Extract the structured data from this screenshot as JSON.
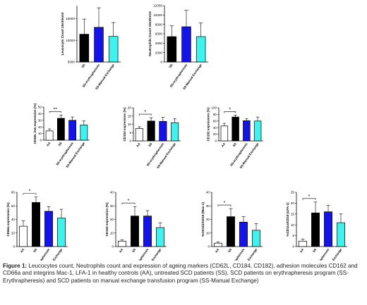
{
  "colors": {
    "AA": "#ffffff",
    "SS": "#000000",
    "SS-erythrapheresis": "#1414e8",
    "SS-Manual Exchange": "#3ff2ee"
  },
  "caption": {
    "label": "Figure 1:",
    "text": "Leucocytes count, Neutrophils count and expression of ageing markers (CD62L, CD184, CD182), adhesion molecules CD162 and CD66a and integrins Mac-1, LFA-1 in healthy controls (AA), untreated SCD patients (SS), SCD patients on erythrapheresis program (SS-Erythrapheresis) and SCD patients on manual exchange transfusion program (SS-Manual Exchange)"
  },
  "chart_data": [
    {
      "type": "bar",
      "ylabel": "Leucocyts Count 10e3/mm3",
      "categories": [
        "SS",
        "SS-erythrapheresis",
        "SS-Manual Exchange"
      ],
      "values": [
        11400,
        13000,
        10900
      ],
      "errors": [
        3500,
        4500,
        3200
      ],
      "ylim": [
        5000,
        18000
      ],
      "yticks": [
        5000,
        10000,
        15000
      ],
      "sig": []
    },
    {
      "type": "bar",
      "ylabel": "Neutrophils Count 10e3/mm3",
      "categories": [
        "SS",
        "SS-erythrapheresis",
        "SS-Manual Exchange"
      ],
      "values": [
        5400,
        7500,
        5400
      ],
      "errors": [
        2300,
        3500,
        2900
      ],
      "ylim": [
        0,
        12000
      ],
      "yticks": [
        0,
        2000,
        4000,
        6000,
        8000,
        10000,
        12000
      ],
      "sig": []
    },
    {
      "type": "bar",
      "ylabel": "CD62L low expression (%)",
      "categories": [
        "AA",
        "SS",
        "SS-erythrapheresis",
        "SS-Manual Exchange"
      ],
      "values": [
        14,
        33,
        30,
        23
      ],
      "errors": [
        3,
        5,
        5,
        6
      ],
      "ylim": [
        0,
        50
      ],
      "yticks": [
        0,
        10,
        20,
        30,
        40,
        50
      ],
      "sig": [
        {
          "from": 0,
          "to": 1,
          "label": "**"
        }
      ]
    },
    {
      "type": "bar",
      "ylabel": "CD184 expression (%)",
      "categories": [
        "AA",
        "SS",
        "SS-erythrapheresis",
        "SS-Manual Exchange"
      ],
      "values": [
        7.5,
        12,
        11.8,
        11
      ],
      "errors": [
        1,
        2,
        2.5,
        2.5
      ],
      "ylim": [
        0,
        20
      ],
      "yticks": [
        0,
        5,
        10,
        15,
        20
      ],
      "sig": [
        {
          "from": 0,
          "to": 1,
          "label": "*"
        }
      ]
    },
    {
      "type": "bar",
      "ylabel": "CD182 expression (%)",
      "categories": [
        "AA",
        "SS",
        "SS-erythrapheresis",
        "SS-Manual Exchange"
      ],
      "values": [
        45,
        72,
        61,
        60
      ],
      "errors": [
        8,
        6,
        6,
        12
      ],
      "ylim": [
        0,
        100
      ],
      "yticks": [
        0,
        20,
        40,
        60,
        80,
        100
      ],
      "sig": [
        {
          "from": 0,
          "to": 1,
          "label": "*"
        }
      ]
    },
    {
      "type": "bar",
      "ylabel": "CD66a expression (%)",
      "categories": [
        "AA",
        "SS",
        "SS-erythrapheresis",
        "SS-Manual Exchange"
      ],
      "values": [
        30,
        65,
        52,
        42
      ],
      "errors": [
        8,
        8,
        7,
        13
      ],
      "ylim": [
        0,
        80
      ],
      "yticks": [
        0,
        20,
        40,
        60,
        80
      ],
      "sig": [
        {
          "from": 0,
          "to": 1,
          "label": "*"
        }
      ]
    },
    {
      "type": "bar",
      "ylabel": "CD162 expression (%)",
      "categories": [
        "AA",
        "SS",
        "SS-erythrapheresis",
        "SS-Manual Exchange"
      ],
      "values": [
        4,
        22.5,
        22.5,
        14
      ],
      "errors": [
        1,
        7,
        4,
        3.5
      ],
      "ylim": [
        0,
        40
      ],
      "yticks": [
        0,
        10,
        20,
        30,
        40
      ],
      "sig": [
        {
          "from": 0,
          "to": 1,
          "label": "*"
        }
      ]
    },
    {
      "type": "bar",
      "ylabel": "%CD11b/CD18 (Mac-1)",
      "categories": [
        "AA",
        "SS",
        "SS-erythrapheresis",
        "SS-Manual Exchange"
      ],
      "values": [
        2.5,
        22,
        18,
        12
      ],
      "errors": [
        1,
        6,
        4,
        5
      ],
      "ylim": [
        0,
        40
      ],
      "yticks": [
        0,
        10,
        20,
        30,
        40
      ],
      "sig": [
        {
          "from": 0,
          "to": 1,
          "label": "*"
        }
      ]
    },
    {
      "type": "bar",
      "ylabel": "%CD11a/CD18 (LFA-1)",
      "categories": [
        "AA",
        "SS",
        "SS-erythrapheresis",
        "SS-Manual Exchange"
      ],
      "values": [
        2.5,
        15.5,
        16,
        11
      ],
      "errors": [
        1,
        5,
        3,
        4
      ],
      "ylim": [
        0,
        25
      ],
      "yticks": [
        0,
        5,
        10,
        15,
        20,
        25
      ],
      "sig": [
        {
          "from": 0,
          "to": 1,
          "label": "*"
        }
      ]
    }
  ]
}
